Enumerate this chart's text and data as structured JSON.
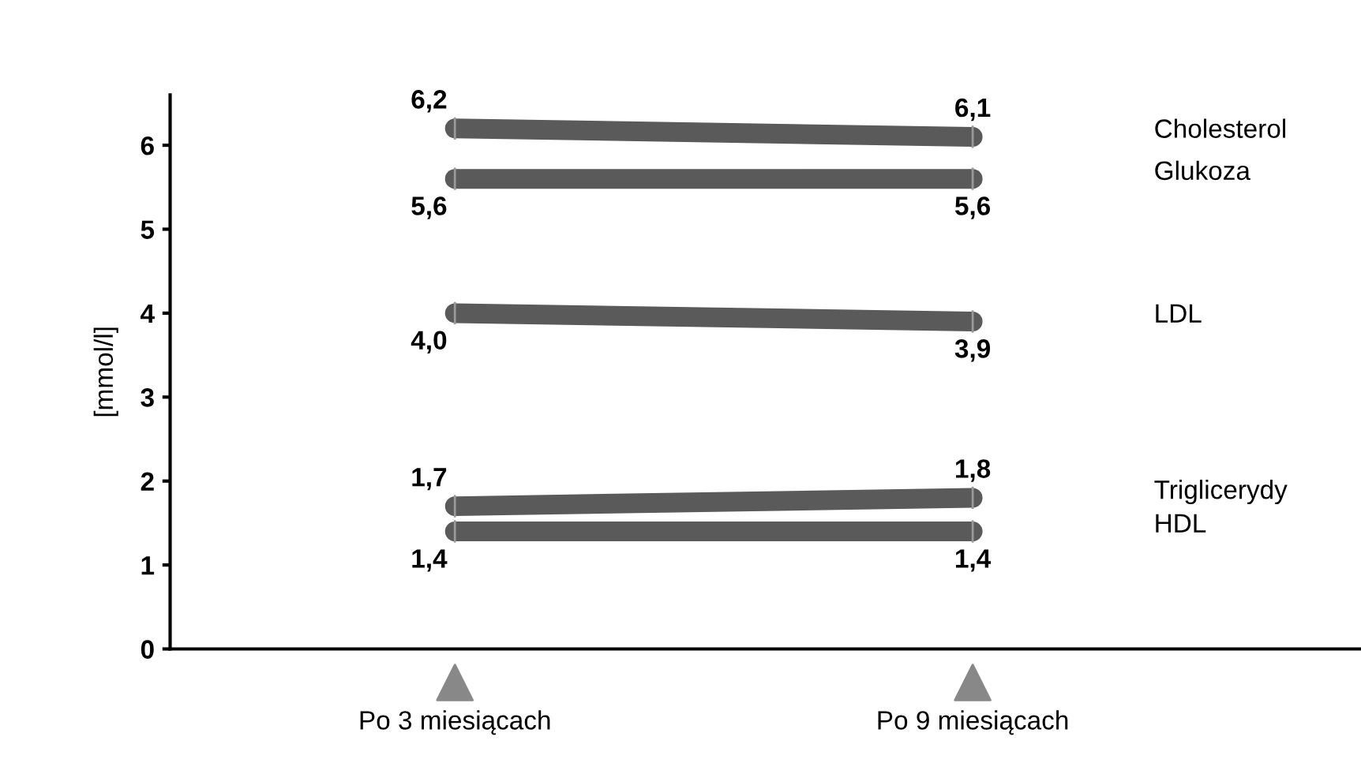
{
  "chart_data": {
    "type": "line",
    "ylabel": "[mmol/l]",
    "categories": [
      "Po 3 miesiącach",
      "Po 9 miesiącach"
    ],
    "series": [
      {
        "name": "Cholesterol",
        "color": "#5a5a5a",
        "values": [
          6.2,
          6.1
        ],
        "value_labels": [
          "6,2",
          "6,1"
        ]
      },
      {
        "name": "Glukoza",
        "color": "#5a5a5a",
        "values": [
          5.6,
          5.6
        ],
        "value_labels": [
          "5,6",
          "5,6"
        ]
      },
      {
        "name": "LDL",
        "color": "#5a5a5a",
        "values": [
          4.0,
          3.9
        ],
        "value_labels": [
          "4,0",
          "3,9"
        ]
      },
      {
        "name": "Triglicerydy",
        "color": "#5a5a5a",
        "values": [
          1.7,
          1.8
        ],
        "value_labels": [
          "1,7",
          "1,8"
        ]
      },
      {
        "name": "HDL",
        "color": "#5a5a5a",
        "values": [
          1.4,
          1.4
        ],
        "value_labels": [
          "1,4",
          "1,4"
        ]
      }
    ],
    "ylim": [
      0,
      6.6
    ],
    "yticks": [
      0,
      1,
      2,
      3,
      4,
      5,
      6
    ],
    "grid": false,
    "line_style": "solid"
  }
}
